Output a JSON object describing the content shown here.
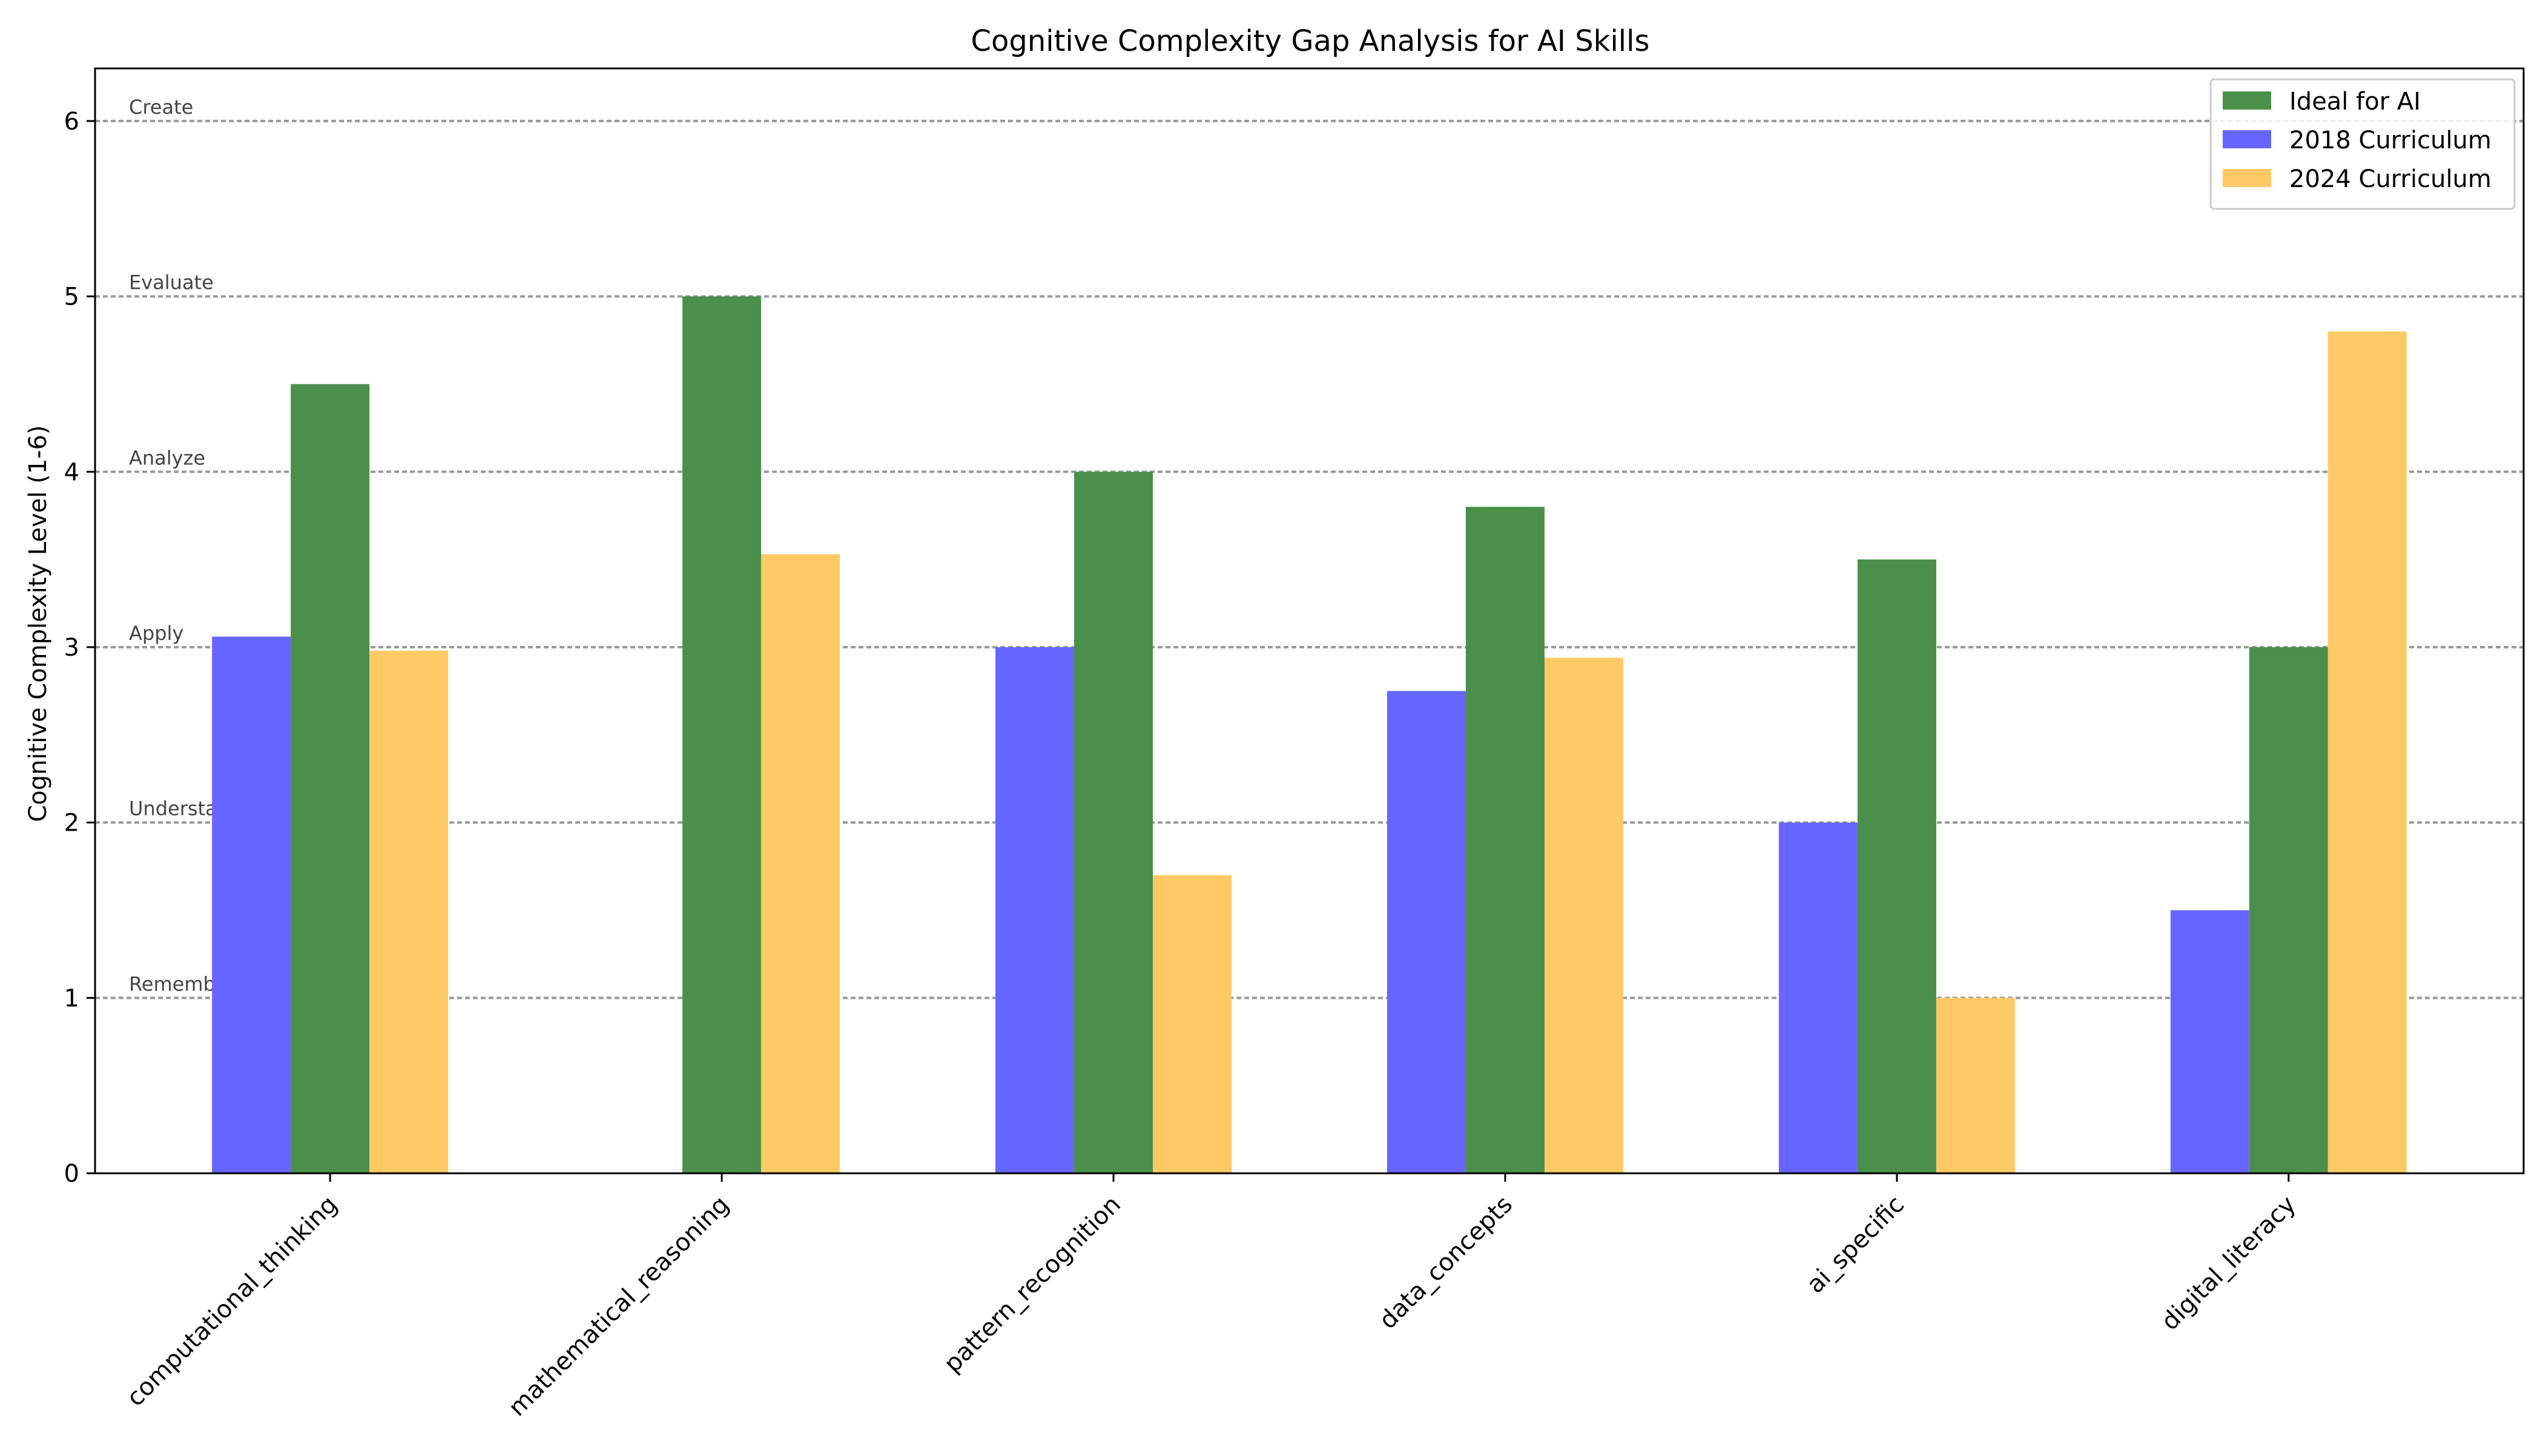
{
  "chart_data": {
    "type": "bar",
    "title": "Cognitive Complexity Gap Analysis for AI Skills",
    "xlabel": "",
    "ylabel": "Cognitive Complexity Level (1-6)",
    "ylim": [
      0,
      6.3
    ],
    "yticks": [
      0,
      1,
      2,
      3,
      4,
      5,
      6
    ],
    "grid": false,
    "legend_position": "top-right",
    "categories": [
      "computational_thinking",
      "mathematical_reasoning",
      "pattern_recognition",
      "data_concepts",
      "ai_specific",
      "digital_literacy"
    ],
    "series": [
      {
        "name": "2018 Curriculum",
        "color": "#6666ff",
        "values": [
          3.06,
          0,
          3.0,
          2.75,
          2.0,
          1.5
        ]
      },
      {
        "name": "Ideal for AI",
        "color": "#4a8f4a",
        "values": [
          4.5,
          5.0,
          4.0,
          3.8,
          3.5,
          3.0
        ]
      },
      {
        "name": "2024 Curriculum",
        "color": "#ffc966",
        "values": [
          2.98,
          3.53,
          1.7,
          2.94,
          1.0,
          4.8
        ]
      }
    ],
    "legend_order": [
      "Ideal for AI",
      "2018 Curriculum",
      "2024 Curriculum"
    ],
    "reference_lines": [
      {
        "value": 1,
        "label": "Remember"
      },
      {
        "value": 2,
        "label": "Understand"
      },
      {
        "value": 3,
        "label": "Apply"
      },
      {
        "value": 4,
        "label": "Analyze"
      },
      {
        "value": 5,
        "label": "Evaluate"
      },
      {
        "value": 6,
        "label": "Create"
      }
    ]
  }
}
